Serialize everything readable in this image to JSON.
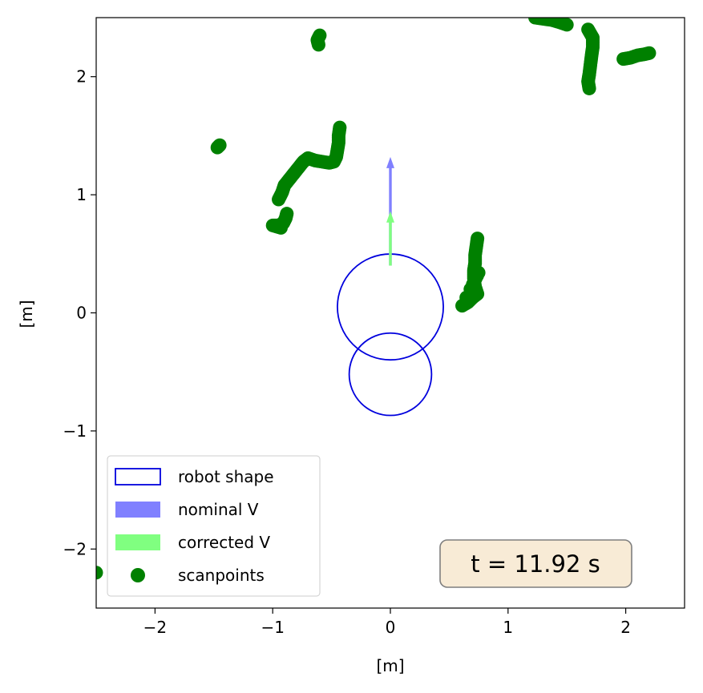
{
  "chart_data": {
    "type": "scatter",
    "title": "",
    "xlabel": "[m]",
    "ylabel": "[m]",
    "xlim": [
      -2.5,
      2.5
    ],
    "ylim": [
      -2.5,
      2.5
    ],
    "xticks": [
      -2,
      -1,
      0,
      1,
      2
    ],
    "yticks": [
      -2,
      -1,
      0,
      1,
      2
    ],
    "xtick_labels": [
      "−2",
      "−1",
      "0",
      "1",
      "2"
    ],
    "ytick_labels": [
      "−2",
      "−1",
      "0",
      "1",
      "2"
    ],
    "grid": false,
    "legend_position": "lower-left",
    "legend": [
      {
        "label": "robot shape",
        "kind": "outline",
        "color": "#0000dd"
      },
      {
        "label": "nominal V",
        "kind": "patch",
        "color": "#8080ff"
      },
      {
        "label": "corrected V",
        "kind": "patch",
        "color": "#80ff80"
      },
      {
        "label": "scanpoints",
        "kind": "marker",
        "color": "#008000"
      }
    ],
    "robot_shape": [
      {
        "cx": 0.0,
        "cy": 0.05,
        "r": 0.45
      },
      {
        "cx": 0.0,
        "cy": -0.52,
        "r": 0.35
      }
    ],
    "nominal_v": {
      "x0": 0.0,
      "y0": 0.4,
      "x1": 0.0,
      "y1": 1.32,
      "color": "#8080ff"
    },
    "corrected_v": {
      "x0": 0.0,
      "y0": 0.4,
      "x1": 0.0,
      "y1": 0.86,
      "color": "#80ff80"
    },
    "scanpoints": {
      "color": "#008000",
      "segments": [
        [
          [
            -0.6,
            2.35
          ],
          [
            -0.62,
            2.31
          ],
          [
            -0.61,
            2.27
          ]
        ],
        [
          [
            -1.45,
            1.42
          ],
          [
            -1.47,
            1.4
          ]
        ],
        [
          [
            -0.43,
            1.57
          ],
          [
            -0.44,
            1.5
          ],
          [
            -0.44,
            1.44
          ],
          [
            -0.45,
            1.38
          ],
          [
            -0.46,
            1.32
          ],
          [
            -0.48,
            1.28
          ],
          [
            -0.52,
            1.27
          ],
          [
            -0.58,
            1.28
          ],
          [
            -0.64,
            1.29
          ],
          [
            -0.7,
            1.31
          ],
          [
            -0.74,
            1.28
          ],
          [
            -0.78,
            1.23
          ],
          [
            -0.82,
            1.18
          ],
          [
            -0.86,
            1.13
          ],
          [
            -0.9,
            1.08
          ],
          [
            -0.92,
            1.02
          ],
          [
            -0.95,
            0.96
          ]
        ],
        [
          [
            -0.88,
            0.84
          ],
          [
            -0.89,
            0.8
          ],
          [
            -0.91,
            0.76
          ],
          [
            -0.95,
            0.74
          ],
          [
            -1.0,
            0.74
          ],
          [
            -0.93,
            0.72
          ]
        ],
        [
          [
            0.74,
            0.63
          ],
          [
            0.73,
            0.56
          ],
          [
            0.72,
            0.49
          ],
          [
            0.72,
            0.42
          ],
          [
            0.71,
            0.36
          ],
          [
            0.71,
            0.29
          ],
          [
            0.72,
            0.22
          ],
          [
            0.74,
            0.16
          ],
          [
            0.7,
            0.13
          ],
          [
            0.66,
            0.09
          ],
          [
            0.61,
            0.06
          ],
          [
            0.75,
            0.34
          ],
          [
            0.7,
            0.24
          ]
        ],
        [
          [
            1.23,
            2.5
          ],
          [
            1.3,
            2.49
          ],
          [
            1.37,
            2.48
          ],
          [
            1.44,
            2.46
          ],
          [
            1.5,
            2.44
          ]
        ],
        [
          [
            1.68,
            2.4
          ],
          [
            1.72,
            2.33
          ],
          [
            1.72,
            2.25
          ],
          [
            1.71,
            2.18
          ],
          [
            1.7,
            2.1
          ],
          [
            1.69,
            2.02
          ],
          [
            1.68,
            1.96
          ],
          [
            1.69,
            1.9
          ]
        ],
        [
          [
            1.98,
            2.15
          ],
          [
            2.04,
            2.16
          ],
          [
            2.1,
            2.18
          ],
          [
            2.16,
            2.19
          ],
          [
            2.2,
            2.2
          ]
        ],
        [
          [
            -2.5,
            -2.2
          ]
        ]
      ]
    },
    "annotation": {
      "text": "t = 11.92 s",
      "box_color": "#f5e6c8",
      "position": "lower-right"
    }
  }
}
